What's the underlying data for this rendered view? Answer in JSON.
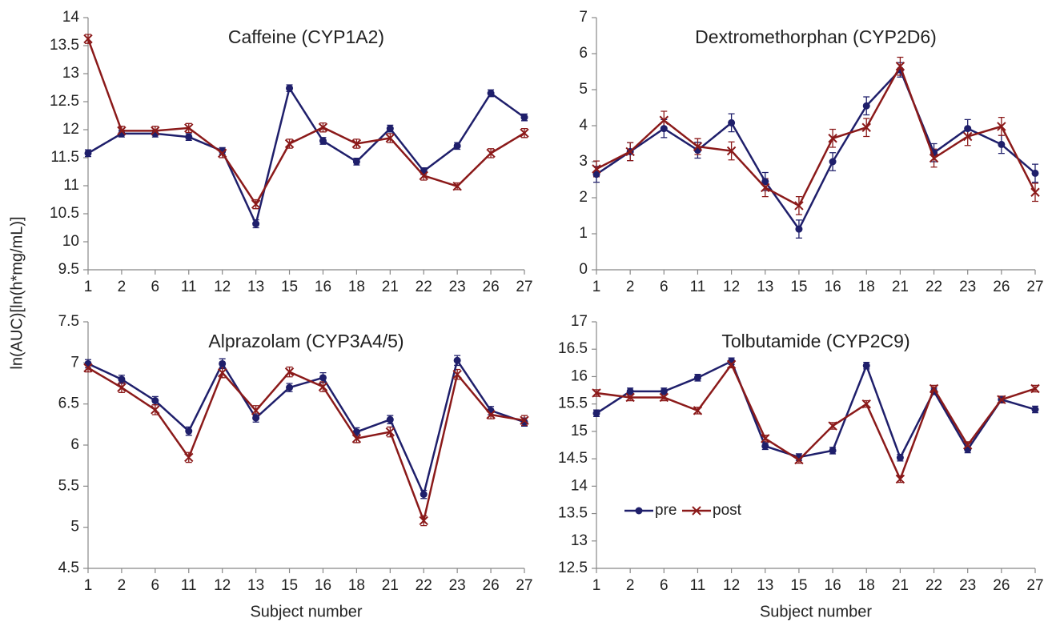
{
  "ylabel": "ln(AUC)[ln(h*mg/mL)]",
  "chart_data": [
    {
      "type": "line",
      "title": "Caffeine (CYP1A2)",
      "categories": [
        "1",
        "2",
        "6",
        "11",
        "12",
        "13",
        "15",
        "16",
        "18",
        "21",
        "22",
        "23",
        "26",
        "27"
      ],
      "ylim": [
        9.5,
        14
      ],
      "yticks": [
        9.5,
        10,
        10.5,
        11,
        11.5,
        12,
        12.5,
        13,
        13.5,
        14
      ],
      "series": [
        {
          "color": "#1f1f6b",
          "marker": "circle",
          "values": [
            11.58,
            11.93,
            11.93,
            11.87,
            11.62,
            10.32,
            12.74,
            11.8,
            11.43,
            12.02,
            11.26,
            11.71,
            12.65,
            12.22
          ],
          "errors": [
            0.06,
            0.06,
            0.06,
            0.06,
            0.06,
            0.07,
            0.06,
            0.06,
            0.06,
            0.06,
            0.06,
            0.06,
            0.06,
            0.06
          ]
        },
        {
          "color": "#8b1a1a",
          "marker": "x",
          "values": [
            13.62,
            11.98,
            11.98,
            12.03,
            11.58,
            10.67,
            11.75,
            12.04,
            11.75,
            11.85,
            11.18,
            10.99,
            11.58,
            11.94
          ],
          "errors": [
            0.08,
            0.08,
            0.08,
            0.08,
            0.08,
            0.08,
            0.08,
            0.08,
            0.08,
            0.08,
            0.08,
            0.06,
            0.08,
            0.08
          ]
        }
      ]
    },
    {
      "type": "line",
      "title": "Dextromethorphan (CYP2D6)",
      "categories": [
        "1",
        "2",
        "6",
        "11",
        "12",
        "13",
        "15",
        "16",
        "18",
        "21",
        "22",
        "23",
        "26",
        "27"
      ],
      "ylim": [
        0,
        7
      ],
      "yticks": [
        0,
        1,
        2,
        3,
        4,
        5,
        6,
        7
      ],
      "series": [
        {
          "color": "#1f1f6b",
          "marker": "circle",
          "values": [
            2.65,
            3.28,
            3.92,
            3.32,
            4.08,
            2.45,
            1.13,
            3.0,
            4.55,
            5.55,
            3.25,
            3.92,
            3.48,
            2.68
          ],
          "errors": [
            0.22,
            0.25,
            0.25,
            0.22,
            0.25,
            0.25,
            0.25,
            0.25,
            0.25,
            0.2,
            0.25,
            0.25,
            0.25,
            0.25
          ]
        },
        {
          "color": "#8b1a1a",
          "marker": "x",
          "values": [
            2.8,
            3.28,
            4.15,
            3.42,
            3.3,
            2.28,
            1.78,
            3.65,
            3.95,
            5.65,
            3.1,
            3.7,
            3.98,
            2.15
          ],
          "errors": [
            0.22,
            0.25,
            0.25,
            0.22,
            0.25,
            0.25,
            0.25,
            0.25,
            0.25,
            0.25,
            0.25,
            0.25,
            0.25,
            0.25
          ]
        }
      ]
    },
    {
      "type": "line",
      "title": "Alprazolam (CYP3A4/5)",
      "xlabel": "Subject number",
      "categories": [
        "1",
        "2",
        "6",
        "11",
        "12",
        "13",
        "15",
        "16",
        "18",
        "21",
        "22",
        "23",
        "26",
        "27"
      ],
      "ylim": [
        4.5,
        7.5
      ],
      "yticks": [
        4.5,
        5,
        5.5,
        6,
        6.5,
        7,
        7.5
      ],
      "series": [
        {
          "color": "#1f1f6b",
          "marker": "circle",
          "values": [
            6.99,
            6.8,
            6.54,
            6.17,
            6.99,
            6.33,
            6.7,
            6.82,
            6.16,
            6.31,
            5.4,
            7.03,
            6.42,
            6.28
          ],
          "errors": [
            0.05,
            0.05,
            0.05,
            0.05,
            0.06,
            0.05,
            0.05,
            0.06,
            0.05,
            0.05,
            0.05,
            0.06,
            0.05,
            0.05
          ]
        },
        {
          "color": "#8b1a1a",
          "marker": "x",
          "values": [
            6.94,
            6.7,
            6.43,
            5.85,
            6.88,
            6.42,
            6.89,
            6.71,
            6.08,
            6.16,
            5.08,
            6.86,
            6.37,
            6.3
          ],
          "errors": [
            0.05,
            0.06,
            0.06,
            0.06,
            0.06,
            0.06,
            0.06,
            0.06,
            0.05,
            0.06,
            0.06,
            0.06,
            0.05,
            0.06
          ]
        }
      ]
    },
    {
      "type": "line",
      "title": "Tolbutamide (CYP2C9)",
      "xlabel": "Subject number",
      "legend": "lower-left",
      "categories": [
        "1",
        "2",
        "6",
        "11",
        "12",
        "13",
        "15",
        "16",
        "18",
        "21",
        "22",
        "23",
        "26",
        "27"
      ],
      "ylim": [
        12.5,
        17
      ],
      "yticks": [
        12.5,
        13,
        13.5,
        14,
        14.5,
        15,
        15.5,
        16,
        16.5,
        17
      ],
      "series": [
        {
          "name": "pre",
          "color": "#1f1f6b",
          "marker": "circle",
          "values": [
            15.33,
            15.73,
            15.73,
            15.98,
            16.28,
            14.73,
            14.53,
            14.65,
            16.2,
            14.52,
            15.73,
            14.67,
            15.58,
            15.4
          ],
          "errors": [
            0.06,
            0.06,
            0.06,
            0.06,
            0.06,
            0.06,
            0.06,
            0.06,
            0.06,
            0.06,
            0.06,
            0.06,
            0.06,
            0.06
          ]
        },
        {
          "name": "post",
          "color": "#8b1a1a",
          "marker": "x",
          "values": [
            15.7,
            15.62,
            15.62,
            15.38,
            16.22,
            14.87,
            14.48,
            15.1,
            15.5,
            14.13,
            15.78,
            14.75,
            15.58,
            15.78
          ],
          "errors": [
            0.06,
            0.06,
            0.06,
            0.06,
            0.06,
            0.06,
            0.06,
            0.06,
            0.06,
            0.06,
            0.06,
            0.06,
            0.06,
            0.06
          ]
        }
      ]
    }
  ]
}
